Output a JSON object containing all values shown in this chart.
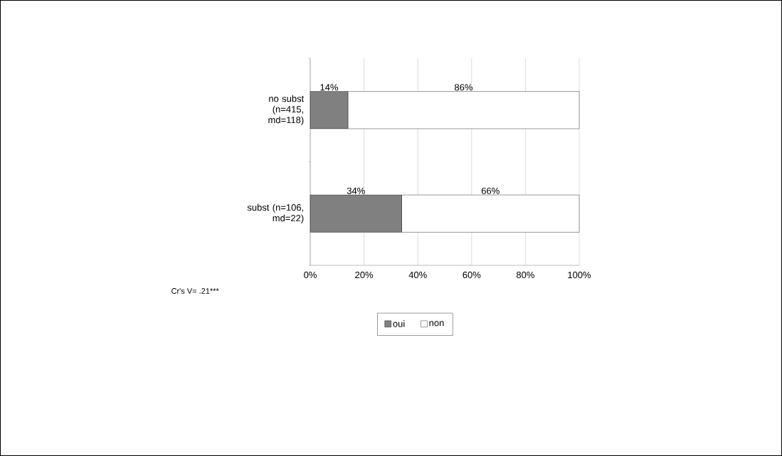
{
  "chart_data": {
    "type": "bar",
    "orientation": "horizontal",
    "stacked": true,
    "categories": [
      "no subst (n=415, md=118)",
      "subst (n=106, md=22)"
    ],
    "series": [
      {
        "name": "oui",
        "color": "#808080",
        "values": [
          14,
          34
        ],
        "value_labels": [
          "14%",
          "34%"
        ]
      },
      {
        "name": "non",
        "color": "#ffffff",
        "values": [
          86,
          66
        ],
        "value_labels": [
          "86%",
          "66%"
        ]
      }
    ],
    "xlim": [
      0,
      100
    ],
    "xticks": [
      {
        "value": 0,
        "label": "0%"
      },
      {
        "value": 20,
        "label": "20%"
      },
      {
        "value": 40,
        "label": "40%"
      },
      {
        "value": 60,
        "label": "60%"
      },
      {
        "value": 80,
        "label": "80%"
      },
      {
        "value": 100,
        "label": "100%"
      }
    ],
    "grid": "x",
    "legend": "bottom",
    "annotations": [
      "Cr's V= .21***"
    ]
  }
}
